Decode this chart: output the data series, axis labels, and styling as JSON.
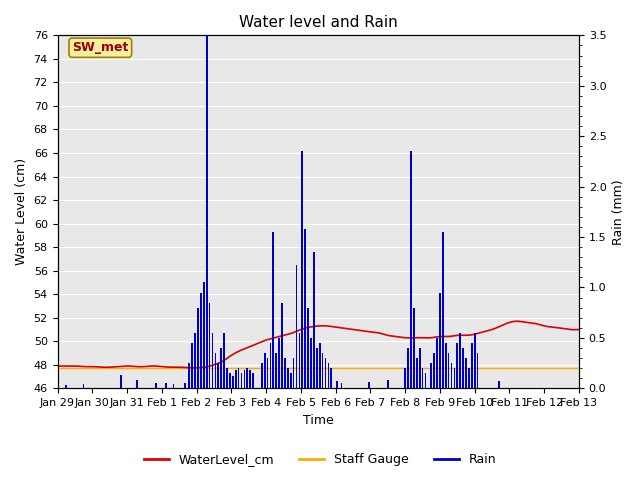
{
  "title": "Water level and Rain",
  "xlabel": "Time",
  "ylabel_left": "Water Level (cm)",
  "ylabel_right": "Rain (mm)",
  "ylim_left": [
    46,
    76
  ],
  "ylim_right": [
    0.0,
    3.5
  ],
  "yticks_left": [
    46,
    48,
    50,
    52,
    54,
    56,
    58,
    60,
    62,
    64,
    66,
    68,
    70,
    72,
    74,
    76
  ],
  "yticks_right": [
    0.0,
    0.5,
    1.0,
    1.5,
    2.0,
    2.5,
    3.0,
    3.5
  ],
  "xtick_labels": [
    "Jan 29",
    "Jan 30",
    "Jan 31",
    "Feb 1",
    "Feb 2",
    "Feb 3",
    "Feb 4",
    "Feb 5",
    "Feb 6",
    "Feb 7",
    "Feb 8",
    "Feb 9",
    "Feb 10",
    "Feb 11",
    "Feb 12",
    "Feb 13"
  ],
  "background_color": "#e8e8e8",
  "grid_color": "#ffffff",
  "annotation_text": "SW_met",
  "annotation_bg": "#f5f0a0",
  "annotation_border": "#a08000",
  "annotation_text_color": "#990000",
  "water_level_color": "#dd0000",
  "rain_color": "#0000cc",
  "staff_gauge_color": "#ffaa00",
  "legend_wl": "WaterLevel_cm",
  "legend_sg": "Staff Gauge",
  "legend_rain": "Rain",
  "total_hours": 360,
  "water_level_x": [
    0,
    6,
    12,
    18,
    24,
    30,
    36,
    42,
    48,
    54,
    60,
    66,
    72,
    78,
    84,
    90,
    96,
    102,
    108,
    114,
    120,
    126,
    132,
    138,
    144,
    150,
    156,
    162,
    168,
    174,
    180,
    186,
    192,
    198,
    204,
    210,
    216,
    222,
    228,
    234,
    240,
    246,
    252,
    258,
    264,
    270,
    276,
    282,
    288,
    294,
    300,
    306,
    312,
    318,
    324,
    330,
    336,
    342,
    348,
    354,
    360
  ],
  "water_level_y": [
    47.9,
    47.9,
    47.9,
    47.85,
    47.85,
    47.8,
    47.8,
    47.85,
    47.9,
    47.85,
    47.85,
    47.9,
    47.85,
    47.8,
    47.8,
    47.75,
    47.75,
    47.8,
    48.0,
    48.3,
    48.8,
    49.2,
    49.5,
    49.8,
    50.1,
    50.3,
    50.5,
    50.7,
    51.0,
    51.2,
    51.3,
    51.3,
    51.2,
    51.1,
    51.0,
    50.9,
    50.8,
    50.7,
    50.5,
    50.4,
    50.3,
    50.3,
    50.3,
    50.3,
    50.4,
    50.4,
    50.5,
    50.5,
    50.6,
    50.8,
    51.0,
    51.3,
    51.6,
    51.7,
    51.6,
    51.5,
    51.3,
    51.2,
    51.1,
    51.0,
    51.0
  ],
  "rain_data": [
    [
      6,
      0.03
    ],
    [
      18,
      0.04
    ],
    [
      44,
      0.13
    ],
    [
      55,
      0.08
    ],
    [
      68,
      0.05
    ],
    [
      75,
      0.05
    ],
    [
      80,
      0.04
    ],
    [
      88,
      0.05
    ],
    [
      91,
      0.25
    ],
    [
      93,
      0.45
    ],
    [
      95,
      0.55
    ],
    [
      97,
      0.8
    ],
    [
      99,
      0.95
    ],
    [
      101,
      1.05
    ],
    [
      103,
      3.5
    ],
    [
      105,
      0.85
    ],
    [
      107,
      0.55
    ],
    [
      109,
      0.35
    ],
    [
      111,
      0.25
    ],
    [
      113,
      0.4
    ],
    [
      115,
      0.55
    ],
    [
      117,
      0.2
    ],
    [
      119,
      0.15
    ],
    [
      121,
      0.12
    ],
    [
      123,
      0.18
    ],
    [
      125,
      0.2
    ],
    [
      127,
      0.15
    ],
    [
      129,
      0.18
    ],
    [
      131,
      0.2
    ],
    [
      133,
      0.18
    ],
    [
      135,
      0.15
    ],
    [
      141,
      0.25
    ],
    [
      143,
      0.35
    ],
    [
      145,
      0.3
    ],
    [
      147,
      0.45
    ],
    [
      149,
      1.55
    ],
    [
      151,
      0.35
    ],
    [
      153,
      0.5
    ],
    [
      155,
      0.85
    ],
    [
      157,
      0.3
    ],
    [
      159,
      0.2
    ],
    [
      161,
      0.15
    ],
    [
      163,
      0.3
    ],
    [
      165,
      1.22
    ],
    [
      167,
      0.55
    ],
    [
      169,
      2.35
    ],
    [
      171,
      1.58
    ],
    [
      173,
      0.8
    ],
    [
      175,
      0.5
    ],
    [
      177,
      1.35
    ],
    [
      179,
      0.4
    ],
    [
      181,
      0.45
    ],
    [
      183,
      0.35
    ],
    [
      185,
      0.3
    ],
    [
      187,
      0.25
    ],
    [
      189,
      0.2
    ],
    [
      193,
      0.07
    ],
    [
      196,
      0.05
    ],
    [
      215,
      0.06
    ],
    [
      228,
      0.08
    ],
    [
      240,
      0.2
    ],
    [
      242,
      0.4
    ],
    [
      244,
      2.35
    ],
    [
      246,
      0.8
    ],
    [
      248,
      0.3
    ],
    [
      250,
      0.4
    ],
    [
      252,
      0.2
    ],
    [
      254,
      0.15
    ],
    [
      258,
      0.25
    ],
    [
      260,
      0.35
    ],
    [
      262,
      0.5
    ],
    [
      264,
      0.95
    ],
    [
      266,
      1.55
    ],
    [
      268,
      0.45
    ],
    [
      270,
      0.35
    ],
    [
      272,
      0.25
    ],
    [
      274,
      0.2
    ],
    [
      276,
      0.45
    ],
    [
      278,
      0.55
    ],
    [
      280,
      0.4
    ],
    [
      282,
      0.3
    ],
    [
      284,
      0.2
    ],
    [
      286,
      0.45
    ],
    [
      288,
      0.55
    ],
    [
      290,
      0.35
    ],
    [
      305,
      0.07
    ]
  ]
}
